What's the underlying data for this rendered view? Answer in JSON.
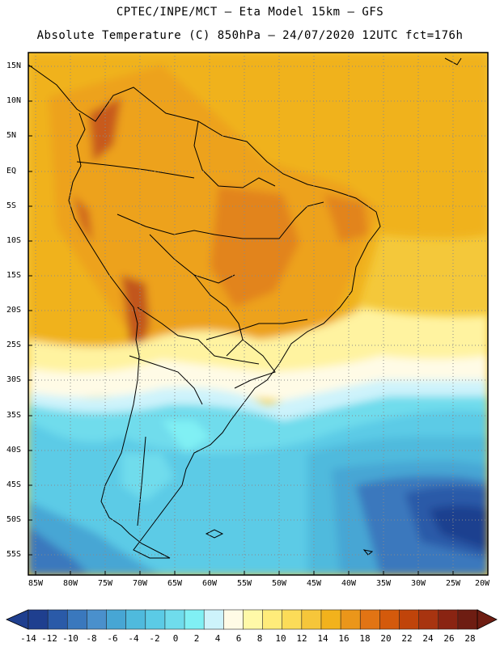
{
  "header": {
    "line1": "CPTEC/INPE/MCT –  Eta Model 15km – GFS",
    "line2": "Absolute Temperature (C) 850hPa – 24/07/2020 12UTC fct=176h"
  },
  "map": {
    "lat_labels": [
      "15N",
      "10N",
      "5N",
      "EQ",
      "5S",
      "10S",
      "15S",
      "20S",
      "25S",
      "30S",
      "35S",
      "40S",
      "45S",
      "50S",
      "55S"
    ],
    "lon_labels": [
      "85W",
      "80W",
      "75W",
      "70W",
      "65W",
      "60W",
      "55W",
      "50W",
      "45W",
      "40W",
      "35W",
      "30W",
      "25W",
      "20W"
    ],
    "lat_range": [
      -58,
      17
    ],
    "lon_range": [
      -86,
      -20
    ],
    "gridlines": true,
    "gridline_style": "dotted"
  },
  "colorbar": {
    "labels": [
      "-14",
      "-12",
      "-10",
      "-8",
      "-6",
      "-4",
      "-2",
      "0",
      "2",
      "4",
      "6",
      "8",
      "10",
      "12",
      "14",
      "16",
      "18",
      "20",
      "22",
      "24",
      "26",
      "28"
    ],
    "colors": [
      "#1f3f8f",
      "#2a5aa8",
      "#3a78bd",
      "#4a90cc",
      "#47a6d4",
      "#4fbadd",
      "#5bcbe6",
      "#6fdcec",
      "#80f0f4",
      "#cdf3fb",
      "#fffbe6",
      "#fff9a8",
      "#ffec7a",
      "#fcdc58",
      "#f6c63a",
      "#f2b21c",
      "#eb961a",
      "#e27414",
      "#d45a0c",
      "#c0440a",
      "#a83410",
      "#8a2412",
      "#6e1d12"
    ]
  }
}
